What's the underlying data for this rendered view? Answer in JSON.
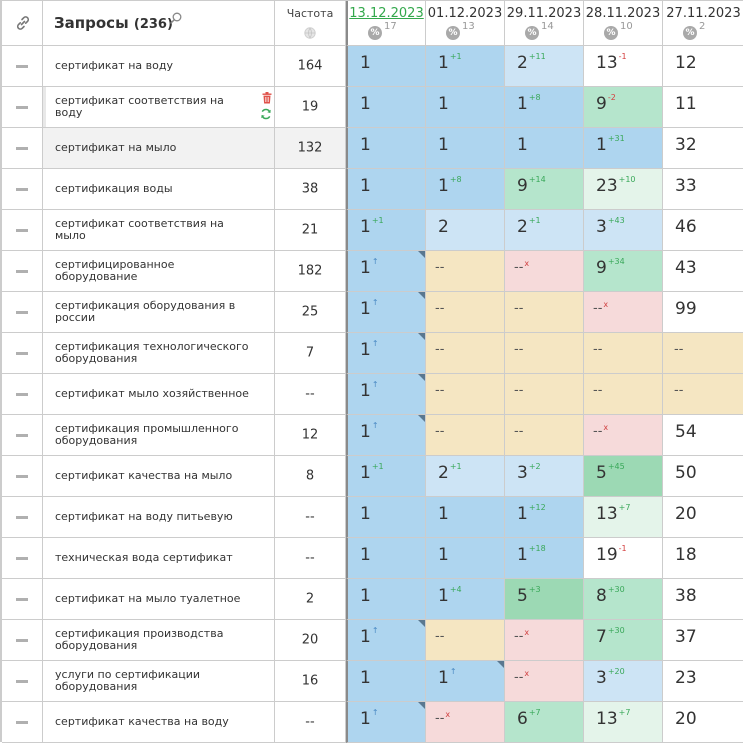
{
  "header": {
    "queries_title": "Запросы",
    "queries_count": "(236)",
    "frequency_label": "Частота",
    "dates": [
      {
        "label": "13.12.2023",
        "count": "17",
        "active": true
      },
      {
        "label": "01.12.2023",
        "count": "13",
        "active": false
      },
      {
        "label": "29.11.2023",
        "count": "14",
        "active": false
      },
      {
        "label": "28.11.2023",
        "count": "10",
        "active": false
      },
      {
        "label": "27.11.2023",
        "count": "2",
        "active": false
      }
    ]
  },
  "colors": {
    "blue": "#aed5ef",
    "light_blue": "#cde4f5",
    "green": "#b5e5cc",
    "light_green": "#e4f4ea",
    "dark_green": "#9cd9b4",
    "yellow": "#f5e6c2",
    "pink": "#f6dada",
    "active_date": "#33a84c"
  },
  "rows": [
    {
      "query": "сертификат на воду",
      "freq": "164",
      "cells": [
        {
          "v": "1",
          "bg": "blue"
        },
        {
          "v": "1",
          "bg": "blue",
          "chg": "+1",
          "dir": "up"
        },
        {
          "v": "2",
          "bg": "lblue",
          "chg": "+11",
          "dir": "up"
        },
        {
          "v": "13",
          "bg": "white",
          "chg": "-1",
          "dir": "dn"
        },
        {
          "v": "12",
          "bg": "white"
        }
      ]
    },
    {
      "query": "сертификат соответствия на воду",
      "freq": "19",
      "hovered": true,
      "cells": [
        {
          "v": "1",
          "bg": "blue"
        },
        {
          "v": "1",
          "bg": "blue"
        },
        {
          "v": "1",
          "bg": "blue",
          "chg": "+8",
          "dir": "up"
        },
        {
          "v": "9",
          "bg": "green",
          "chg": "-2",
          "dir": "dn"
        },
        {
          "v": "11",
          "bg": "white"
        }
      ]
    },
    {
      "query": "сертификат на мыло",
      "freq": "132",
      "shaded": true,
      "cells": [
        {
          "v": "1",
          "bg": "blue"
        },
        {
          "v": "1",
          "bg": "blue"
        },
        {
          "v": "1",
          "bg": "blue"
        },
        {
          "v": "1",
          "bg": "blue",
          "chg": "+31",
          "dir": "up"
        },
        {
          "v": "32",
          "bg": "white"
        }
      ]
    },
    {
      "query": "сертификация воды",
      "freq": "38",
      "cells": [
        {
          "v": "1",
          "bg": "blue"
        },
        {
          "v": "1",
          "bg": "blue",
          "chg": "+8",
          "dir": "up"
        },
        {
          "v": "9",
          "bg": "green",
          "chg": "+14",
          "dir": "up"
        },
        {
          "v": "23",
          "bg": "lgreen",
          "chg": "+10",
          "dir": "up"
        },
        {
          "v": "33",
          "bg": "white"
        }
      ]
    },
    {
      "query": "сертификат соответствия на мыло",
      "freq": "21",
      "cells": [
        {
          "v": "1",
          "bg": "blue",
          "chg": "+1",
          "dir": "up"
        },
        {
          "v": "2",
          "bg": "lblue"
        },
        {
          "v": "2",
          "bg": "lblue",
          "chg": "+1",
          "dir": "up"
        },
        {
          "v": "3",
          "bg": "lblue",
          "chg": "+43",
          "dir": "up"
        },
        {
          "v": "46",
          "bg": "white"
        }
      ]
    },
    {
      "query": "сертифицированное оборудование",
      "freq": "182",
      "cells": [
        {
          "v": "1",
          "bg": "blue",
          "chg": "↑",
          "dir": "arrow",
          "corner": true
        },
        {
          "v": "--",
          "bg": "yellow",
          "dash": true
        },
        {
          "v": "--",
          "bg": "pink",
          "dash": true,
          "chg": "x",
          "dir": "cross"
        },
        {
          "v": "9",
          "bg": "green",
          "chg": "+34",
          "dir": "up"
        },
        {
          "v": "43",
          "bg": "white"
        }
      ]
    },
    {
      "query": "сертификация оборудования в россии",
      "freq": "25",
      "cells": [
        {
          "v": "1",
          "bg": "blue",
          "chg": "↑",
          "dir": "arrow",
          "corner": true
        },
        {
          "v": "--",
          "bg": "yellow",
          "dash": true
        },
        {
          "v": "--",
          "bg": "yellow",
          "dash": true
        },
        {
          "v": "--",
          "bg": "pink",
          "dash": true,
          "chg": "x",
          "dir": "cross"
        },
        {
          "v": "99",
          "bg": "white"
        }
      ]
    },
    {
      "query": "сертификация технологического оборудования",
      "freq": "7",
      "cells": [
        {
          "v": "1",
          "bg": "blue",
          "chg": "↑",
          "dir": "arrow",
          "corner": true
        },
        {
          "v": "--",
          "bg": "yellow",
          "dash": true
        },
        {
          "v": "--",
          "bg": "yellow",
          "dash": true
        },
        {
          "v": "--",
          "bg": "yellow",
          "dash": true
        },
        {
          "v": "--",
          "bg": "yellow",
          "dash": true
        }
      ]
    },
    {
      "query": "сертификат мыло хозяйственное",
      "freq": "--",
      "cells": [
        {
          "v": "1",
          "bg": "blue",
          "chg": "↑",
          "dir": "arrow",
          "corner": true
        },
        {
          "v": "--",
          "bg": "yellow",
          "dash": true
        },
        {
          "v": "--",
          "bg": "yellow",
          "dash": true
        },
        {
          "v": "--",
          "bg": "yellow",
          "dash": true
        },
        {
          "v": "--",
          "bg": "yellow",
          "dash": true
        }
      ]
    },
    {
      "query": "сертификация промышленного оборудования",
      "freq": "12",
      "cells": [
        {
          "v": "1",
          "bg": "blue",
          "chg": "↑",
          "dir": "arrow",
          "corner": true
        },
        {
          "v": "--",
          "bg": "yellow",
          "dash": true
        },
        {
          "v": "--",
          "bg": "yellow",
          "dash": true
        },
        {
          "v": "--",
          "bg": "pink",
          "dash": true,
          "chg": "x",
          "dir": "cross"
        },
        {
          "v": "54",
          "bg": "white"
        }
      ]
    },
    {
      "query": "сертификат качества на мыло",
      "freq": "8",
      "cells": [
        {
          "v": "1",
          "bg": "blue",
          "chg": "+1",
          "dir": "up"
        },
        {
          "v": "2",
          "bg": "lblue",
          "chg": "+1",
          "dir": "up"
        },
        {
          "v": "3",
          "bg": "lblue",
          "chg": "+2",
          "dir": "up"
        },
        {
          "v": "5",
          "bg": "dgreen",
          "chg": "+45",
          "dir": "up"
        },
        {
          "v": "50",
          "bg": "white"
        }
      ]
    },
    {
      "query": "сертификат на воду питьевую",
      "freq": "--",
      "cells": [
        {
          "v": "1",
          "bg": "blue"
        },
        {
          "v": "1",
          "bg": "blue"
        },
        {
          "v": "1",
          "bg": "blue",
          "chg": "+12",
          "dir": "up"
        },
        {
          "v": "13",
          "bg": "lgreen",
          "chg": "+7",
          "dir": "up"
        },
        {
          "v": "20",
          "bg": "white"
        }
      ]
    },
    {
      "query": "техническая вода сертификат",
      "freq": "--",
      "cells": [
        {
          "v": "1",
          "bg": "blue"
        },
        {
          "v": "1",
          "bg": "blue"
        },
        {
          "v": "1",
          "bg": "blue",
          "chg": "+18",
          "dir": "up"
        },
        {
          "v": "19",
          "bg": "white",
          "chg": "-1",
          "dir": "dn"
        },
        {
          "v": "18",
          "bg": "white"
        }
      ]
    },
    {
      "query": "сертификат на мыло туалетное",
      "freq": "2",
      "cells": [
        {
          "v": "1",
          "bg": "blue"
        },
        {
          "v": "1",
          "bg": "blue",
          "chg": "+4",
          "dir": "up"
        },
        {
          "v": "5",
          "bg": "dgreen",
          "chg": "+3",
          "dir": "up"
        },
        {
          "v": "8",
          "bg": "green",
          "chg": "+30",
          "dir": "up"
        },
        {
          "v": "38",
          "bg": "white"
        }
      ]
    },
    {
      "query": "сертификация производства оборудования",
      "freq": "20",
      "cells": [
        {
          "v": "1",
          "bg": "blue",
          "chg": "↑",
          "dir": "arrow",
          "corner": true
        },
        {
          "v": "--",
          "bg": "yellow",
          "dash": true
        },
        {
          "v": "--",
          "bg": "pink",
          "dash": true,
          "chg": "x",
          "dir": "cross"
        },
        {
          "v": "7",
          "bg": "green",
          "chg": "+30",
          "dir": "up"
        },
        {
          "v": "37",
          "bg": "white"
        }
      ]
    },
    {
      "query": "услуги по сертификации оборудования",
      "freq": "16",
      "cells": [
        {
          "v": "1",
          "bg": "blue"
        },
        {
          "v": "1",
          "bg": "blue",
          "chg": "↑",
          "dir": "arrow",
          "corner": true
        },
        {
          "v": "--",
          "bg": "pink",
          "dash": true,
          "chg": "x",
          "dir": "cross"
        },
        {
          "v": "3",
          "bg": "lblue",
          "chg": "+20",
          "dir": "up"
        },
        {
          "v": "23",
          "bg": "white"
        }
      ]
    },
    {
      "query": "сертификат качества на воду",
      "freq": "--",
      "cells": [
        {
          "v": "1",
          "bg": "blue",
          "chg": "↑",
          "dir": "arrow",
          "corner": true
        },
        {
          "v": "--",
          "bg": "pink",
          "dash": true,
          "chg": "x",
          "dir": "cross"
        },
        {
          "v": "6",
          "bg": "green",
          "chg": "+7",
          "dir": "up"
        },
        {
          "v": "13",
          "bg": "lgreen",
          "chg": "+7",
          "dir": "up"
        },
        {
          "v": "20",
          "bg": "white"
        }
      ]
    }
  ]
}
